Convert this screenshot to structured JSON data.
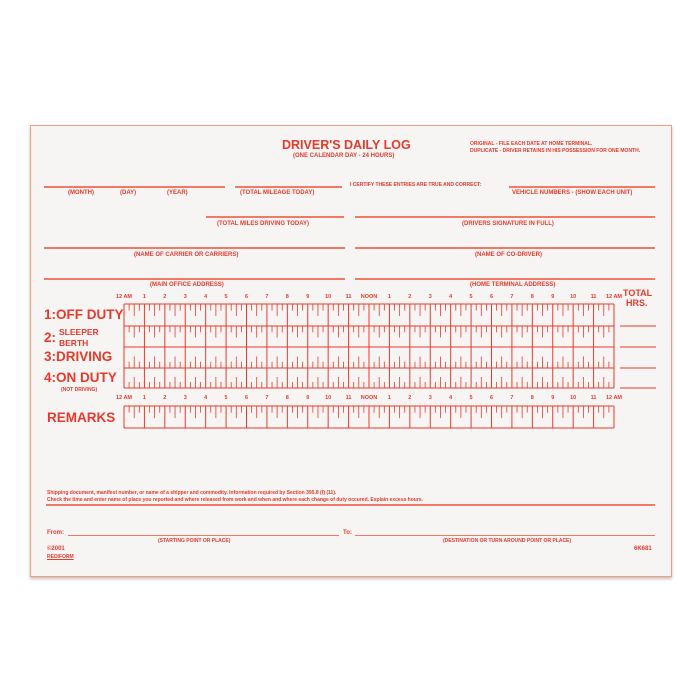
{
  "header": {
    "title": "DRIVER'S DAILY LOG",
    "subtitle": "(ONE CALENDAR DAY - 24 HOURS)",
    "copy_note_1": "ORIGINAL - FILE EACH DATE AT HOME TERMINAL.",
    "copy_note_2": "DUPLICATE - DRIVER RETAINS IN HIS POSSESSION FOR ONE MONTH."
  },
  "fields": {
    "month": "(MONTH)",
    "day": "(DAY)",
    "year": "(YEAR)",
    "total_mileage": "(TOTAL MILEAGE TODAY)",
    "certify": "I CERTIFY THESE ENTRIES ARE TRUE AND CORRECT:",
    "vehicle_numbers": "VEHICLE NUMBERS - (SHOW EACH UNIT)",
    "total_miles_driving": "(TOTAL MILES DRIVING TODAY)",
    "signature": "(DRIVERS SIGNATURE IN FULL)",
    "carrier": "(NAME OF CARRIER OR CARRIERS)",
    "co_driver": "(NAME OF CO-DRIVER)",
    "main_office": "(MAIN OFFICE ADDRESS)",
    "home_terminal": "(HOME TERMINAL ADDRESS)"
  },
  "grid": {
    "hour_labels": [
      "12 AM",
      "1",
      "2",
      "3",
      "4",
      "5",
      "6",
      "7",
      "8",
      "9",
      "10",
      "11",
      "NOON",
      "1",
      "2",
      "3",
      "4",
      "5",
      "6",
      "7",
      "8",
      "9",
      "10",
      "11",
      "12 AM"
    ],
    "total_label_1": "TOTAL",
    "total_label_2": "HRS.",
    "rows": [
      {
        "num": "1:",
        "label": "OFF DUTY"
      },
      {
        "num": "2:",
        "label": "SLEEPER",
        "label2": "BERTH"
      },
      {
        "num": "3:",
        "label": "DRIVING"
      },
      {
        "num": "4:",
        "label": "ON DUTY",
        "note": "(NOT DRIVING)"
      }
    ],
    "remarks": "REMARKS"
  },
  "footer": {
    "instructions_1": "Shipping document, manifest number, or name of a shipper and commodity. Information required by Section 395.8 (f) (11).",
    "instructions_2": "Check the time and enter name of place you reported and where released from work and when and where each change of duty occured.  Explain excess hours.",
    "from": "From:",
    "to": "To:",
    "starting_point": "(STARTING POINT OR PLACE)",
    "destination": "(DESTINATION OR TURN AROUND POINT OR PLACE)",
    "copyright": "©2001",
    "brand": "REDIFORM",
    "form_number": "6K681"
  },
  "colors": {
    "ink": "#e63a2c",
    "line": "#f07a66",
    "paper": "#f6f5f4"
  }
}
